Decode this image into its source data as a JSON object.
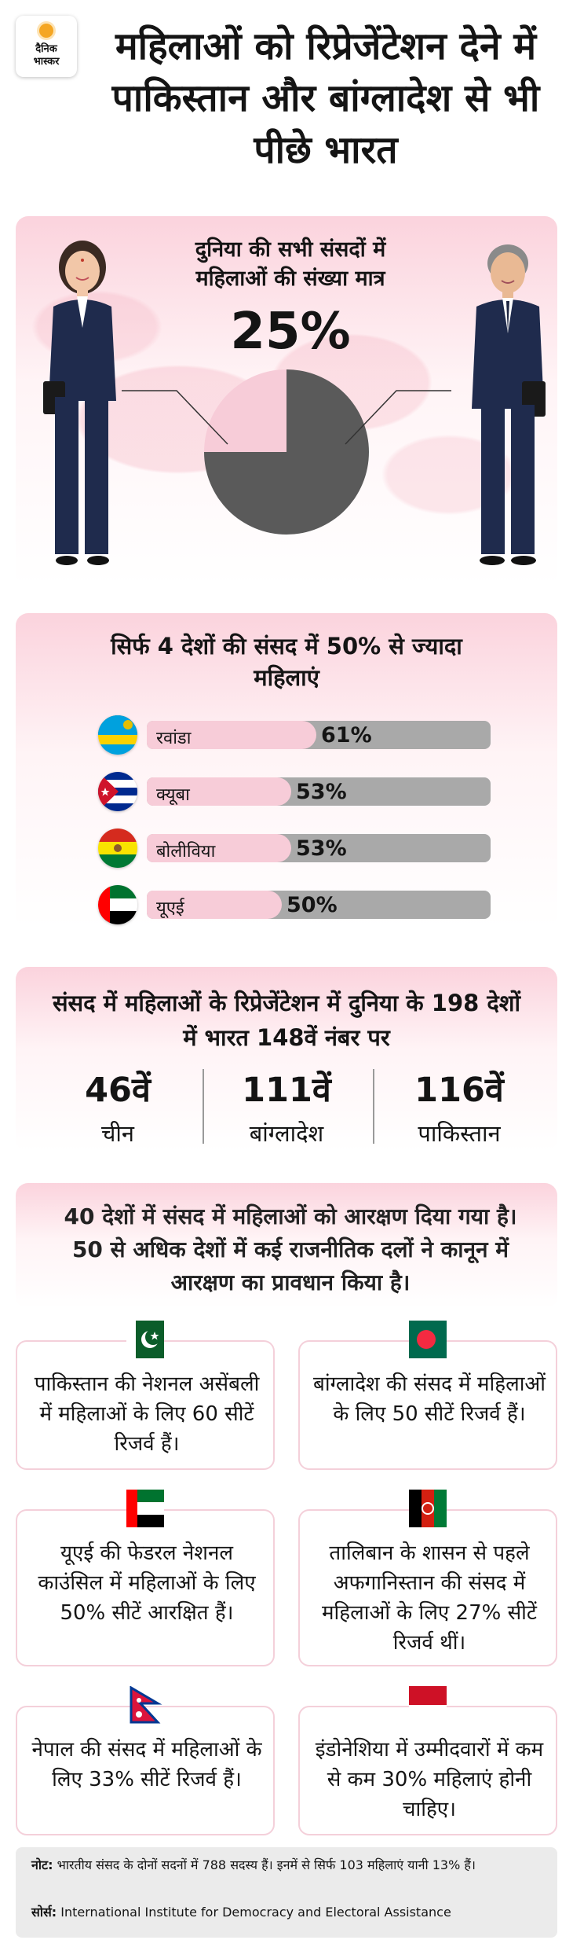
{
  "logo": {
    "line1": "दैनिक",
    "line2": "भास्कर"
  },
  "title": "महिलाओं को रिप्रेजेंटेशन देने में पाकिस्तान और बांग्लादेश से भी पीछे भारत",
  "section1": {
    "text": "दुनिया की सभी संसदों में महिलाओं की संख्या मात्र",
    "percent": "25%",
    "share_women": 0.25,
    "colors": {
      "women": "#f7ccd8",
      "other": "#5a5a5a"
    }
  },
  "section2": {
    "title": "सिर्फ 4 देशों की संसद में 50% से ज्यादा महिलाएं",
    "rows": [
      {
        "country": "रवांडा",
        "value_label": "61%",
        "value": 61,
        "flag": "rwanda-flag"
      },
      {
        "country": "क्यूबा",
        "value_label": "53%",
        "value": 53,
        "flag": "cuba-flag"
      },
      {
        "country": "बोलीविया",
        "value_label": "53%",
        "value": 53,
        "flag": "bolivia-flag"
      },
      {
        "country": "यूएई",
        "value_label": "50%",
        "value": 50,
        "flag": "uae-flag"
      }
    ]
  },
  "section3": {
    "title": "संसद में महिलाओं के रिप्रेजेंटेशन में दुनिया के 198 देशों में भारत 148वें नंबर पर",
    "ranks": [
      {
        "rank": "46वें",
        "country": "चीन"
      },
      {
        "rank": "111वें",
        "country": "बांग्लादेश"
      },
      {
        "rank": "116वें",
        "country": "पाकिस्तान"
      }
    ]
  },
  "section4": {
    "text": "40 देशों में संसद में महिलाओं को आरक्षण दिया गया है। 50 से अधिक देशों में कई राजनीतिक दलों ने कानून में आरक्षण का प्रावधान किया है।"
  },
  "cards": [
    {
      "flag": "pakistan-flag",
      "text": "पाकिस्तान की नेशनल असेंबली में महिलाओं के लिए 60 सीटें रिजर्व हैं।"
    },
    {
      "flag": "bangladesh-flag",
      "text": "बांग्लादेश की संसद में महिलाओं के लिए 50 सीटें रिजर्व हैं।"
    },
    {
      "flag": "uae-flag",
      "text": "यूएई की फेडरल नेशनल काउंसिल में महिलाओं के लिए 50% सीटें आरक्षित हैं।"
    },
    {
      "flag": "afghanistan-flag",
      "text": "तालिबान के शासन से पहले अफगानिस्तान की संसद में महिलाओं के लिए 27% सीटें रिजर्व थीं।"
    },
    {
      "flag": "nepal-flag",
      "text": "नेपाल की संसद में महिलाओं के लिए 33% सीटें रिजर्व हैं।"
    },
    {
      "flag": "indonesia-flag",
      "text": "इंडोनेशिया में उम्मीदवारों में कम से कम 30% महिलाएं होनी चाहिए।"
    }
  ],
  "note": {
    "note_label": "नोट:",
    "note_text": "भारतीय संसद के दोनों सदनों में 788 सदस्य हैं। इनमें से सिर्फ 103 महिलाएं यानी 13% हैं।",
    "source_label": "सोर्स:",
    "source_text": "International Institute for Democracy and Electoral Assistance"
  }
}
